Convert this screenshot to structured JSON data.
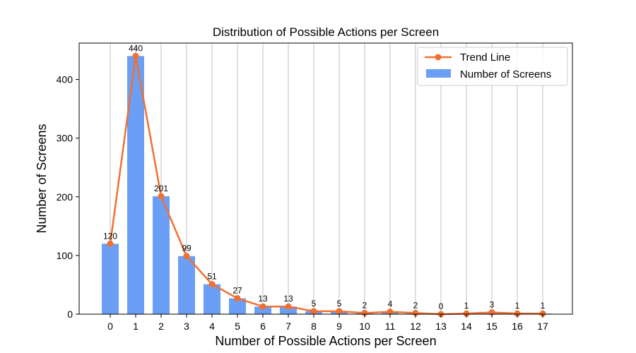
{
  "chart_data": {
    "type": "bar",
    "title": "Distribution of Possible Actions per Screen",
    "xlabel": "Number of Possible Actions per Screen",
    "ylabel": "Number of Screens",
    "categories": [
      "0",
      "1",
      "2",
      "3",
      "4",
      "5",
      "6",
      "7",
      "8",
      "9",
      "10",
      "11",
      "12",
      "13",
      "14",
      "15",
      "16",
      "17"
    ],
    "ylim": [
      0,
      462
    ],
    "yticks": [
      0,
      100,
      200,
      300,
      400
    ],
    "grid": "x",
    "legend_position": "top-right",
    "series": [
      {
        "name": "Number of Screens",
        "kind": "bar",
        "color": "#6b9ff5",
        "values": [
          120,
          440,
          201,
          99,
          51,
          27,
          13,
          13,
          5,
          5,
          2,
          4,
          2,
          0,
          1,
          3,
          1,
          1
        ]
      },
      {
        "name": "Trend Line",
        "kind": "line",
        "color": "#f07030",
        "marker": "circle",
        "values": [
          120,
          440,
          201,
          99,
          51,
          27,
          13,
          13,
          5,
          5,
          2,
          4,
          2,
          0,
          1,
          3,
          1,
          1
        ]
      }
    ],
    "data_labels": [
      "120",
      "440",
      "201",
      "99",
      "51",
      "27",
      "13",
      "13",
      "5",
      "5",
      "2",
      "4",
      "2",
      "0",
      "1",
      "3",
      "1",
      "1"
    ]
  }
}
